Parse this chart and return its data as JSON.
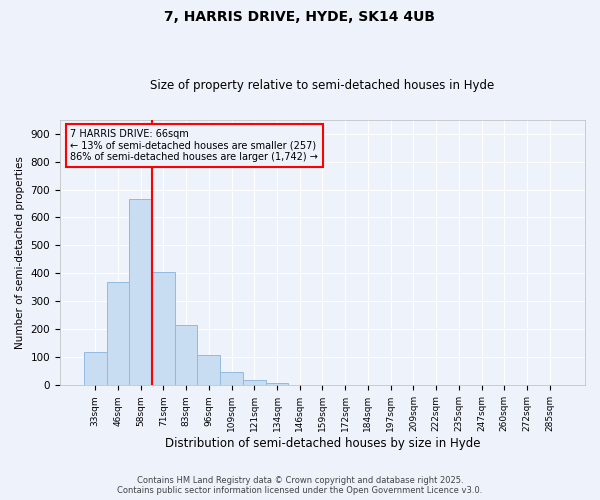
{
  "title": "7, HARRIS DRIVE, HYDE, SK14 4UB",
  "subtitle": "Size of property relative to semi-detached houses in Hyde",
  "xlabel": "Distribution of semi-detached houses by size in Hyde",
  "ylabel": "Number of semi-detached properties",
  "categories": [
    "33sqm",
    "46sqm",
    "58sqm",
    "71sqm",
    "83sqm",
    "96sqm",
    "109sqm",
    "121sqm",
    "134sqm",
    "146sqm",
    "159sqm",
    "172sqm",
    "184sqm",
    "197sqm",
    "209sqm",
    "222sqm",
    "235sqm",
    "247sqm",
    "260sqm",
    "272sqm",
    "285sqm"
  ],
  "values": [
    120,
    370,
    665,
    405,
    215,
    108,
    47,
    18,
    7,
    3,
    1,
    0,
    0,
    0,
    0,
    0,
    0,
    0,
    0,
    0,
    0
  ],
  "bar_color": "#c9ddf2",
  "bar_edge_color": "#92b9df",
  "vline_index": 2.5,
  "vline_color": "red",
  "annotation_title": "7 HARRIS DRIVE: 66sqm",
  "annotation_line1": "← 13% of semi-detached houses are smaller (257)",
  "annotation_line2": "86% of semi-detached houses are larger (1,742) →",
  "annotation_box_edgecolor": "red",
  "ylim": [
    0,
    950
  ],
  "yticks": [
    0,
    100,
    200,
    300,
    400,
    500,
    600,
    700,
    800,
    900
  ],
  "background_color": "#eef2fb",
  "grid_color": "#ffffff",
  "footer_line1": "Contains HM Land Registry data © Crown copyright and database right 2025.",
  "footer_line2": "Contains public sector information licensed under the Open Government Licence v3.0."
}
